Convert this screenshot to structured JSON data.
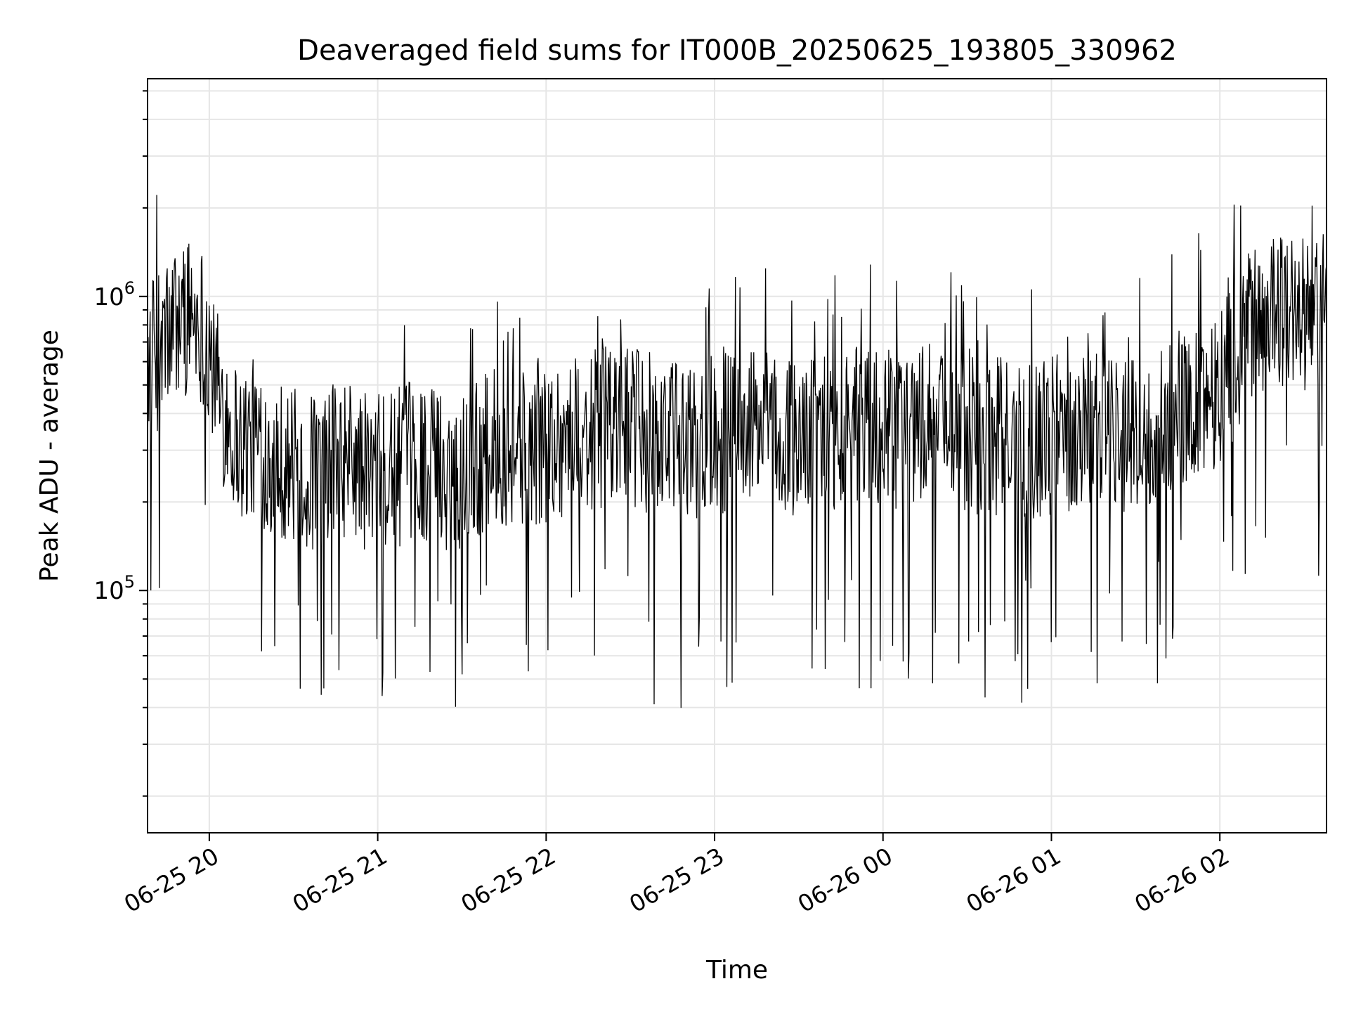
{
  "chart_data": {
    "type": "line",
    "title": "Deaveraged field sums for IT000B_20250625_193805_330962",
    "xlabel": "Time",
    "ylabel": "Peak ADU - average",
    "yscale": "log",
    "ylim": [
      15000,
      5500000
    ],
    "xlim": [
      "2025-06-25 19:38",
      "2025-06-26 02:38"
    ],
    "grid": true,
    "line_color": "#000000",
    "x_ticks": [
      {
        "value": "2025-06-25 20:00",
        "label": "06-25 20"
      },
      {
        "value": "2025-06-25 21:00",
        "label": "06-25 21"
      },
      {
        "value": "2025-06-25 22:00",
        "label": "06-25 22"
      },
      {
        "value": "2025-06-25 23:00",
        "label": "06-25 23"
      },
      {
        "value": "2025-06-26 00:00",
        "label": "06-26 00"
      },
      {
        "value": "2025-06-26 01:00",
        "label": "06-26 01"
      },
      {
        "value": "2025-06-26 02:00",
        "label": "06-26 02"
      }
    ],
    "y_ticks": [
      {
        "value": 100000,
        "base": "10",
        "exp": "5"
      },
      {
        "value": 1000000,
        "base": "10",
        "exp": "6"
      }
    ],
    "series": [
      {
        "x": [
          "2025-06-25 19:38",
          "2025-06-25 19:42",
          "2025-06-25 19:46",
          "2025-06-25 19:50",
          "2025-06-25 19:54",
          "2025-06-25 19:58",
          "2025-06-25 20:00",
          "2025-06-25 20:02",
          "2025-06-25 20:05",
          "2025-06-25 20:08",
          "2025-06-25 20:12",
          "2025-06-25 20:16",
          "2025-06-25 20:20",
          "2025-06-25 20:25",
          "2025-06-25 20:30",
          "2025-06-25 20:35",
          "2025-06-25 20:40",
          "2025-06-25 20:45",
          "2025-06-25 20:50",
          "2025-06-25 20:53",
          "2025-06-25 20:58",
          "2025-06-25 21:05",
          "2025-06-25 21:10",
          "2025-06-25 21:15",
          "2025-06-25 21:20",
          "2025-06-25 21:25",
          "2025-06-25 21:30",
          "2025-06-25 21:35",
          "2025-06-25 21:40",
          "2025-06-25 21:45",
          "2025-06-25 21:50",
          "2025-06-25 21:55",
          "2025-06-25 22:00",
          "2025-06-25 22:05",
          "2025-06-25 22:10",
          "2025-06-25 22:15",
          "2025-06-25 22:20",
          "2025-06-25 22:25",
          "2025-06-25 22:30",
          "2025-06-25 22:35",
          "2025-06-25 22:40",
          "2025-06-25 22:45",
          "2025-06-25 22:50",
          "2025-06-25 22:55",
          "2025-06-25 22:58",
          "2025-06-25 23:05",
          "2025-06-25 23:10",
          "2025-06-25 23:15",
          "2025-06-25 23:20",
          "2025-06-25 23:25",
          "2025-06-25 23:30",
          "2025-06-25 23:35",
          "2025-06-25 23:40",
          "2025-06-25 23:45",
          "2025-06-25 23:50",
          "2025-06-25 23:55",
          "2025-06-26 00:00",
          "2025-06-26 00:05",
          "2025-06-26 00:10",
          "2025-06-26 00:15",
          "2025-06-26 00:20",
          "2025-06-26 00:25",
          "2025-06-26 00:30",
          "2025-06-26 00:35",
          "2025-06-26 00:40",
          "2025-06-26 00:45",
          "2025-06-26 00:50",
          "2025-06-26 00:55",
          "2025-06-26 01:00",
          "2025-06-26 01:05",
          "2025-06-26 01:10",
          "2025-06-26 01:15",
          "2025-06-26 01:20",
          "2025-06-26 01:25",
          "2025-06-26 01:30",
          "2025-06-26 01:35",
          "2025-06-26 01:40",
          "2025-06-26 01:45",
          "2025-06-26 01:50",
          "2025-06-26 01:55",
          "2025-06-26 02:00",
          "2025-06-26 02:05",
          "2025-06-26 02:10",
          "2025-06-26 02:15",
          "2025-06-26 02:20",
          "2025-06-26 02:25",
          "2025-06-26 02:30",
          "2025-06-26 02:35",
          "2025-06-26 02:38"
        ],
        "values": [
          650000,
          700000,
          800000,
          900000,
          950000,
          850000,
          700000,
          550000,
          450000,
          380000,
          330000,
          350000,
          320000,
          300000,
          280000,
          260000,
          280000,
          290000,
          300000,
          280000,
          260000,
          270000,
          290000,
          300000,
          280000,
          270000,
          280000,
          300000,
          320000,
          330000,
          320000,
          330000,
          340000,
          350000,
          360000,
          370000,
          380000,
          390000,
          380000,
          370000,
          360000,
          350000,
          340000,
          350000,
          360000,
          370000,
          380000,
          380000,
          370000,
          360000,
          350000,
          360000,
          370000,
          380000,
          390000,
          380000,
          370000,
          380000,
          390000,
          400000,
          390000,
          380000,
          370000,
          360000,
          360000,
          350000,
          350000,
          350000,
          360000,
          370000,
          380000,
          390000,
          380000,
          370000,
          360000,
          370000,
          380000,
          420000,
          450000,
          480000,
          550000,
          650000,
          800000,
          950000,
          1000000,
          950000,
          900000,
          950000,
          1000000
        ]
      }
    ]
  }
}
